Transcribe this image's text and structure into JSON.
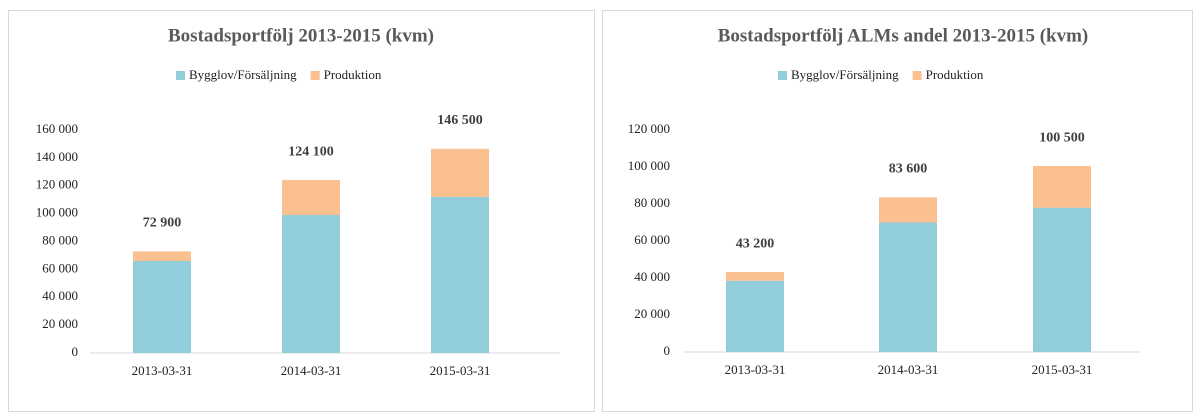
{
  "chart_data": [
    {
      "type": "stacked_bar",
      "title": "Bostadsportfölj 2013-2015 (kvm)",
      "categories": [
        "2013-03-31",
        "2014-03-31",
        "2015-03-31"
      ],
      "series": [
        {
          "name": "Bygglov/Försäljning",
          "color": "#92cddc",
          "values": [
            66000,
            99000,
            112000
          ]
        },
        {
          "name": "Produktion",
          "color": "#fac090",
          "values": [
            6900,
            25100,
            34500
          ]
        }
      ],
      "total_labels": [
        "72 900",
        "124 100",
        "146 500"
      ],
      "ylim": [
        0,
        160000
      ],
      "yticks": [
        0,
        {
          "value": 20000,
          "label": "20 000"
        },
        {
          "value": 40000,
          "label": "40 000"
        },
        {
          "value": 60000,
          "label": "60 000"
        },
        {
          "value": 80000,
          "label": "80 000"
        },
        {
          "value": 100000,
          "label": "100 000"
        },
        {
          "value": 120000,
          "label": "120 000"
        },
        {
          "value": 140000,
          "label": "140 000"
        },
        {
          "value": 160000,
          "label": "160 000"
        }
      ],
      "legend": "top"
    },
    {
      "type": "stacked_bar",
      "title": "Bostadsportfölj ALMs andel 2013-2015 (kvm)",
      "categories": [
        "2013-03-31",
        "2014-03-31",
        "2015-03-31"
      ],
      "series": [
        {
          "name": "Bygglov/Försäljning",
          "color": "#92cddc",
          "values": [
            38500,
            70000,
            78000
          ]
        },
        {
          "name": "Produktion",
          "color": "#fac090",
          "values": [
            4700,
            13600,
            22500
          ]
        }
      ],
      "total_labels": [
        "43 200",
        "83 600",
        "100 500"
      ],
      "ylim": [
        0,
        120000
      ],
      "yticks": [
        0,
        {
          "value": 20000,
          "label": "20 000"
        },
        {
          "value": 40000,
          "label": "40 000"
        },
        {
          "value": 60000,
          "label": "60 000"
        },
        {
          "value": 80000,
          "label": "80 000"
        },
        {
          "value": 100000,
          "label": "100 000"
        },
        {
          "value": 120000,
          "label": "120 000"
        }
      ],
      "legend": "top"
    }
  ]
}
